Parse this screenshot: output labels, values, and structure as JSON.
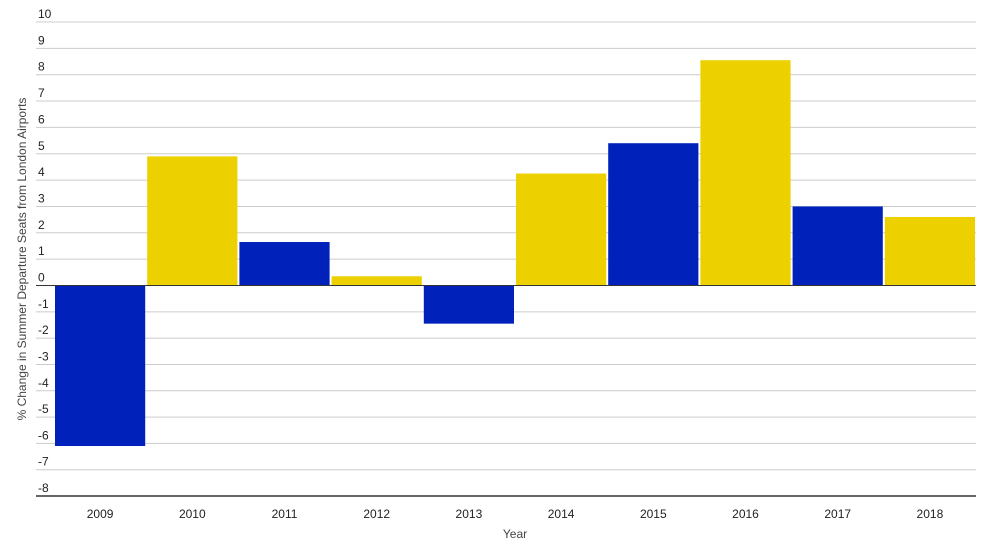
{
  "chart_data": {
    "type": "bar",
    "title": "",
    "xlabel": "Year",
    "ylabel": "% Change in Summer Departure Seats from London Airports",
    "categories": [
      "2009",
      "2010",
      "2011",
      "2012",
      "2013",
      "2014",
      "2015",
      "2016",
      "2017",
      "2018"
    ],
    "values": [
      -6.1,
      4.9,
      1.65,
      0.35,
      -1.45,
      4.25,
      5.4,
      8.55,
      3.0,
      2.6
    ],
    "ylim": [
      -8,
      10
    ],
    "yticks": [
      "10",
      "9",
      "8",
      "7",
      "6",
      "5",
      "4",
      "3",
      "2",
      "1",
      "0",
      "-1",
      "-2",
      "-3",
      "-4",
      "-5",
      "-6",
      "-7",
      "-8"
    ],
    "grid": true,
    "legend": "none",
    "colors": [
      "#0022bb",
      "#ecd000"
    ]
  }
}
